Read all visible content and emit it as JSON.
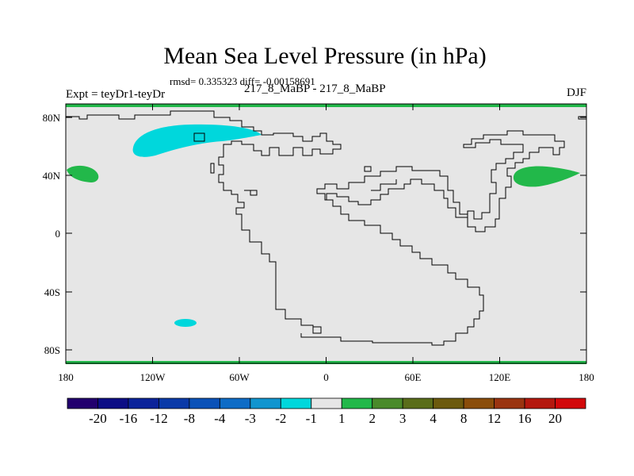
{
  "title": "Mean Sea Level Pressure (in hPa)",
  "stats": "rmsd= 0.335323 diff= -0.00158691",
  "experiment": "Expt = teyDr1-teyDr",
  "period": "217_8_MaBP - 217_8_MaBP",
  "season": "DJF",
  "axes": {
    "x_ticks": [
      "180",
      "120W",
      "60W",
      "0",
      "60E",
      "120E",
      "180"
    ],
    "y_ticks": [
      "80N",
      "40N",
      "0",
      "40S",
      "80S"
    ]
  },
  "colorbar": {
    "colors": [
      "#22006e",
      "#0c0d85",
      "#0b239a",
      "#0a3aa8",
      "#0a52b8",
      "#0e6cc6",
      "#1195cf",
      "#00d7dc",
      "#e6e6e6",
      "#22b84a",
      "#4a8a2a",
      "#5a6d1a",
      "#6c5a0e",
      "#8a4d0a",
      "#9a3410",
      "#b4180e",
      "#d2080a"
    ],
    "labels": [
      "-20",
      "-16",
      "-12",
      "-8",
      "-4",
      "-3",
      "-2",
      "-1",
      "1",
      "2",
      "3",
      "4",
      "8",
      "12",
      "16",
      "20"
    ]
  }
}
